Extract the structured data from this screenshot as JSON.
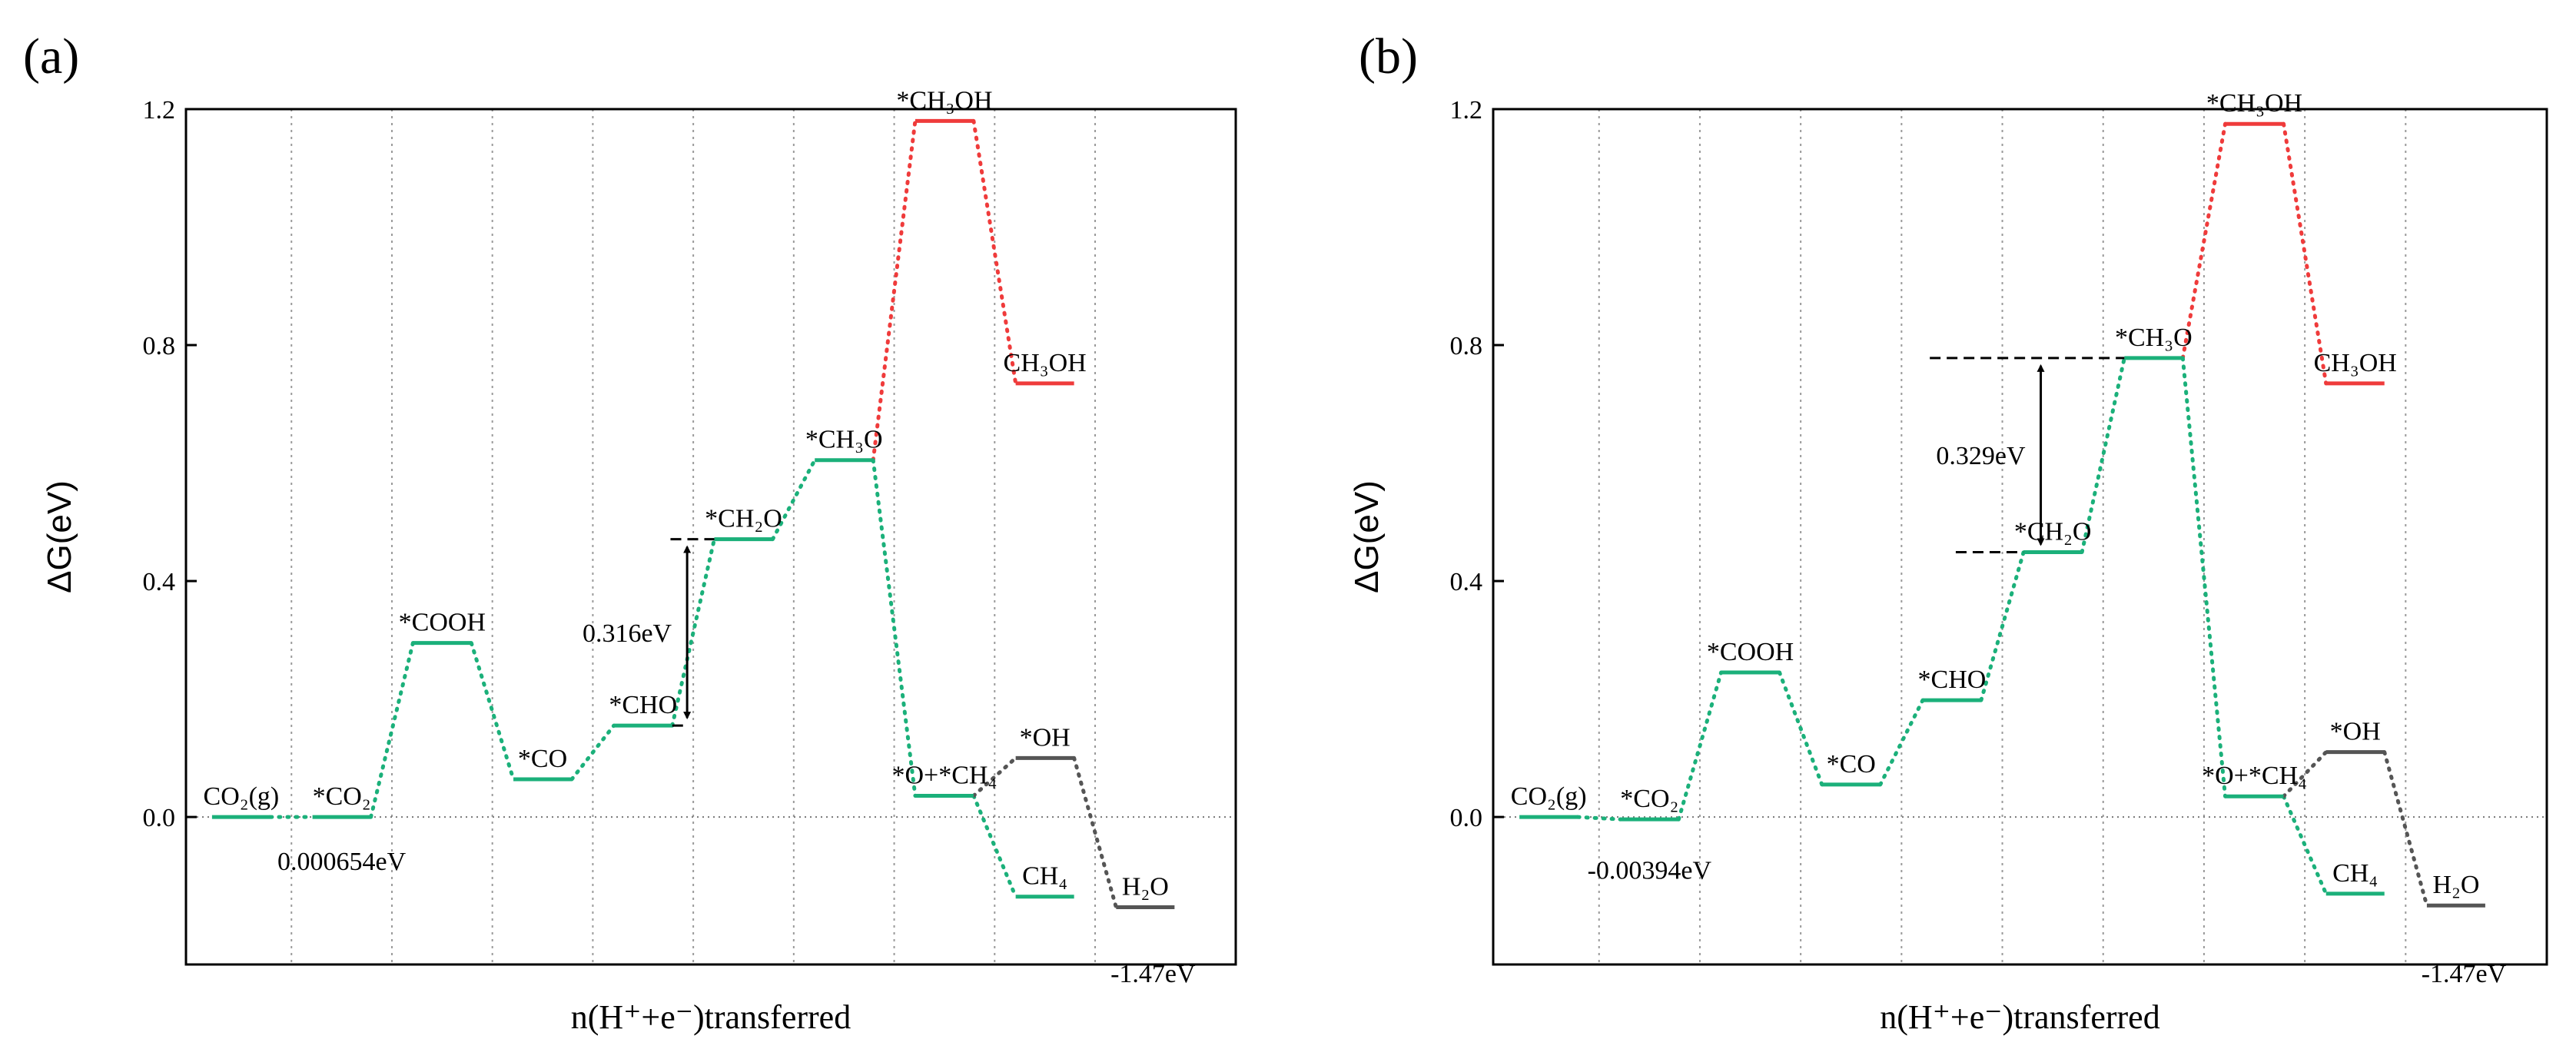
{
  "chart_data": [
    {
      "type": "line",
      "panel_label": "(a)",
      "ylabel": "ΔG(eV)",
      "xlabel": "n(H⁺+e⁻)transferred",
      "ylim": [
        -0.25,
        1.2
      ],
      "yticks": [
        0.0,
        0.4,
        0.8,
        1.2
      ],
      "ytick_labels": [
        "0.0",
        "0.4",
        "0.8",
        "1.2"
      ],
      "xgrid": [
        1.5,
        2.5,
        3.5,
        4.5,
        5.5,
        6.5,
        7.5,
        8.5,
        9.5
      ],
      "states": [
        {
          "id": "co2g",
          "label": "CO₂(g)",
          "x": 1,
          "y": 0.0,
          "color": "#1bb07a"
        },
        {
          "id": "co2",
          "label": "*CO₂",
          "x": 2,
          "y": 0.0,
          "color": "#1bb07a"
        },
        {
          "id": "cooh",
          "label": "*COOH",
          "x": 3,
          "y": 0.295,
          "color": "#1bb07a"
        },
        {
          "id": "co",
          "label": "*CO",
          "x": 4,
          "y": 0.064,
          "color": "#1bb07a"
        },
        {
          "id": "cho",
          "label": "*CHO",
          "x": 5,
          "y": 0.155,
          "color": "#1bb07a"
        },
        {
          "id": "ch2o",
          "label": "*CH₂O",
          "x": 6,
          "y": 0.471,
          "color": "#1bb07a"
        },
        {
          "id": "ch3o",
          "label": "*CH₃O",
          "x": 7,
          "y": 0.605,
          "color": "#1bb07a"
        },
        {
          "id": "ch3oh_ads",
          "label": "*CH₃OH",
          "x": 8,
          "y": 1.18,
          "color": "#ef3b3b"
        },
        {
          "id": "ch3oh",
          "label": "CH₃OH",
          "x": 9,
          "y": 0.735,
          "color": "#ef3b3b"
        },
        {
          "id": "o_ch4",
          "label": "*O+*CH₄",
          "x": 8,
          "y": 0.036,
          "color": "#1bb07a"
        },
        {
          "id": "ch4",
          "label": "CH₄",
          "x": 9,
          "y": -0.135,
          "color": "#1bb07a"
        },
        {
          "id": "oh",
          "label": "*OH",
          "x": 9,
          "y": 0.1,
          "color": "#555555"
        },
        {
          "id": "h2o",
          "label": "H₂O",
          "x": 10,
          "y": -0.153,
          "color": "#555555"
        }
      ],
      "connections": [
        {
          "from": "co2g",
          "to": "co2",
          "color": "#1bb07a"
        },
        {
          "from": "co2",
          "to": "cooh",
          "color": "#1bb07a"
        },
        {
          "from": "cooh",
          "to": "co",
          "color": "#1bb07a"
        },
        {
          "from": "co",
          "to": "cho",
          "color": "#1bb07a"
        },
        {
          "from": "cho",
          "to": "ch2o",
          "color": "#1bb07a"
        },
        {
          "from": "ch2o",
          "to": "ch3o",
          "color": "#1bb07a"
        },
        {
          "from": "ch3o",
          "to": "ch3oh_ads",
          "color": "#ef3b3b"
        },
        {
          "from": "ch3oh_ads",
          "to": "ch3oh",
          "color": "#ef3b3b"
        },
        {
          "from": "ch3o",
          "to": "o_ch4",
          "color": "#1bb07a"
        },
        {
          "from": "o_ch4",
          "to": "ch4",
          "color": "#1bb07a"
        },
        {
          "from": "o_ch4",
          "to": "oh",
          "color": "#555555"
        },
        {
          "from": "oh",
          "to": "h2o",
          "color": "#555555"
        }
      ],
      "barrier": {
        "value_label": "0.316eV",
        "low": 0.155,
        "high": 0.471,
        "color": "#1f4e79"
      },
      "annotations": [
        {
          "text": "0.000654eV",
          "x": 2,
          "y": -0.03,
          "color": "#000000"
        },
        {
          "text": "-1.47eV",
          "x": 10,
          "y": -0.215,
          "color": "#ee1111"
        }
      ]
    },
    {
      "type": "line",
      "panel_label": "(b)",
      "ylabel": "ΔG(eV)",
      "xlabel": "n(H⁺+e⁻)transferred",
      "ylim": [
        -0.25,
        1.2
      ],
      "yticks": [
        0.0,
        0.4,
        0.8,
        1.2
      ],
      "ytick_labels": [
        "0.0",
        "0.4",
        "0.8",
        "1.2"
      ],
      "xgrid": [
        1.5,
        2.5,
        3.5,
        4.5,
        5.5,
        6.5,
        7.5,
        8.5,
        9.5
      ],
      "states": [
        {
          "id": "co2g",
          "label": "CO₂(g)",
          "x": 1,
          "y": 0.0,
          "color": "#1bb07a"
        },
        {
          "id": "co2",
          "label": "*CO₂",
          "x": 2,
          "y": -0.004,
          "color": "#1bb07a"
        },
        {
          "id": "cooh",
          "label": "*COOH",
          "x": 3,
          "y": 0.245,
          "color": "#1bb07a"
        },
        {
          "id": "co",
          "label": "*CO",
          "x": 4,
          "y": 0.055,
          "color": "#1bb07a"
        },
        {
          "id": "cho",
          "label": "*CHO",
          "x": 5,
          "y": 0.198,
          "color": "#1bb07a"
        },
        {
          "id": "ch2o",
          "label": "*CH₂O",
          "x": 6,
          "y": 0.449,
          "color": "#1bb07a"
        },
        {
          "id": "ch3o",
          "label": "*CH₃O",
          "x": 7,
          "y": 0.778,
          "color": "#1bb07a"
        },
        {
          "id": "ch3oh_ads",
          "label": "*CH₃OH",
          "x": 8,
          "y": 1.175,
          "color": "#ef3b3b"
        },
        {
          "id": "ch3oh",
          "label": "CH₃OH",
          "x": 9,
          "y": 0.735,
          "color": "#ef3b3b"
        },
        {
          "id": "o_ch4",
          "label": "*O+*CH₄",
          "x": 8,
          "y": 0.035,
          "color": "#1bb07a"
        },
        {
          "id": "ch4",
          "label": "CH₄",
          "x": 9,
          "y": -0.13,
          "color": "#1bb07a"
        },
        {
          "id": "oh",
          "label": "*OH",
          "x": 9,
          "y": 0.11,
          "color": "#555555"
        },
        {
          "id": "h2o",
          "label": "H₂O",
          "x": 10,
          "y": -0.15,
          "color": "#555555"
        }
      ],
      "connections": [
        {
          "from": "co2g",
          "to": "co2",
          "color": "#1bb07a"
        },
        {
          "from": "co2",
          "to": "cooh",
          "color": "#1bb07a"
        },
        {
          "from": "cooh",
          "to": "co",
          "color": "#1bb07a"
        },
        {
          "from": "co",
          "to": "cho",
          "color": "#1bb07a"
        },
        {
          "from": "cho",
          "to": "ch2o",
          "color": "#1bb07a"
        },
        {
          "from": "ch2o",
          "to": "ch3o",
          "color": "#1bb07a"
        },
        {
          "from": "ch3o",
          "to": "ch3oh_ads",
          "color": "#ef3b3b"
        },
        {
          "from": "ch3oh_ads",
          "to": "ch3oh",
          "color": "#ef3b3b"
        },
        {
          "from": "ch3o",
          "to": "o_ch4",
          "color": "#1bb07a"
        },
        {
          "from": "o_ch4",
          "to": "ch4",
          "color": "#1bb07a"
        },
        {
          "from": "o_ch4",
          "to": "oh",
          "color": "#555555"
        },
        {
          "from": "oh",
          "to": "h2o",
          "color": "#555555"
        }
      ],
      "barrier": {
        "value_label": "0.329eV",
        "low": 0.449,
        "high": 0.778,
        "color": "#1f4e79"
      },
      "annotations": [
        {
          "text": "-0.00394eV",
          "x": 2,
          "y": -0.045,
          "color": "#000000"
        },
        {
          "text": "-1.47eV",
          "x": 10,
          "y": -0.215,
          "color": "#ee1111"
        }
      ]
    }
  ]
}
